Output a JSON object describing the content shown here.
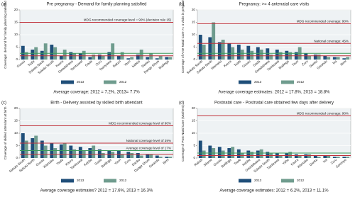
{
  "chart_data": [
    {
      "type": "bar",
      "panel": "(a)",
      "title": "Pre pregnancy - Demand for family planning satisfied",
      "y_label": "Coverage: demand for family planning satisfied",
      "categories": [
        "Gusau",
        "Tsafe",
        "Sokoto North",
        "Sokoto South",
        "Kaura",
        "Gwadabawa",
        "Tambuwal",
        "Gada",
        "Zuru",
        "Tsanyawa",
        "Bakori",
        "Yauri",
        "Kebbe",
        "Danko",
        "Dange Shuni",
        "Bodinga"
      ],
      "series": [
        {
          "name": "2013",
          "color": "#1f4e79",
          "values": [
            5.5,
            4.0,
            3.5,
            6.0,
            1.5,
            3.0,
            2.5,
            1.0,
            2.0,
            3.0,
            1.5,
            0.5,
            2.0,
            1.0,
            0.5,
            1.0
          ]
        },
        {
          "name": "2012",
          "color": "#6f9c8e",
          "values": [
            3.0,
            5.0,
            6.5,
            5.0,
            4.0,
            2.5,
            3.5,
            2.0,
            1.5,
            6.5,
            3.0,
            1.0,
            4.0,
            2.5,
            1.5,
            1.0
          ]
        }
      ],
      "ylim": [
        0,
        20
      ],
      "yticks": [
        0,
        5,
        10,
        15,
        20
      ],
      "ref_lines": [
        {
          "value": 15,
          "color": "#c0303a",
          "label": "MDG recommended coverage:level = 90% (decision rule 15)"
        },
        {
          "value": 2.5,
          "color": "#3d9a5a"
        },
        {
          "value": 1.5,
          "color": "#c0303a"
        }
      ],
      "footnote": "Average coverage: 2012 = 7.2%, 2013= 7.7%"
    },
    {
      "type": "bar",
      "panel": "(b)",
      "title": "Pregnancy: >= 4 antenatal care visits",
      "y_label": "Coverage of Ante Natal Care >= 4 visits in pregnancy",
      "categories": [
        "Sokoto South",
        "Sokoto North",
        "Wamako",
        "Kaura",
        "Tsafe",
        "Gusau",
        "Gada",
        "Gwadabawa",
        "Tambuwal",
        "Bodinga",
        "Yauri",
        "Zuru",
        "Danko",
        "Gwandu",
        "Isa",
        "Birni"
      ],
      "series": [
        {
          "name": "2013",
          "color": "#1f4e79",
          "values": [
            10,
            9,
            7,
            6.5,
            6,
            5.5,
            5,
            4.5,
            4,
            3.5,
            3,
            2.5,
            2,
            1.5,
            1,
            0.5
          ]
        },
        {
          "name": "2012",
          "color": "#6f9c8e",
          "values": [
            6,
            15,
            8,
            5,
            4,
            3.5,
            4,
            2,
            3,
            3,
            5,
            1.5,
            2,
            1,
            1,
            1
          ]
        }
      ],
      "ylim": [
        0,
        20
      ],
      "yticks": [
        0,
        5,
        10,
        15,
        20
      ],
      "ref_lines": [
        {
          "value": 14.5,
          "color": "#c0303a",
          "label": "MDG recommended coverage: 90%"
        },
        {
          "value": 6.5,
          "color": "#c0303a",
          "label": "National coverage: 45%"
        },
        {
          "value": 2.5,
          "color": "#3d9a5a"
        },
        {
          "value": 1.5,
          "color": "#c0303a"
        }
      ],
      "footnote": "Average coverage estimates: 2012 = 17.8%, 2013 = 18.8%"
    },
    {
      "type": "bar",
      "panel": "(c)",
      "title": "Birth - Delivery assisted by skilled birth attendant",
      "y_label": "Coverage of skilled attendant at birth",
      "categories": [
        "Sokoto South",
        "Sokoto North",
        "Gusau",
        "Wamako",
        "Tsafe",
        "Kaura",
        "Tambuwal",
        "Kebbe",
        "Gada",
        "Bodinga",
        "Yauri",
        "Zuru",
        "Danko",
        "Dange Shuni",
        "Gwandu",
        "Birni"
      ],
      "series": [
        {
          "name": "2013",
          "color": "#1f4e79",
          "values": [
            10,
            8,
            7,
            6,
            5.5,
            5,
            4.5,
            4,
            3.5,
            3,
            3,
            2.5,
            2,
            1.5,
            1,
            0.5
          ]
        },
        {
          "name": "2012",
          "color": "#6f9c8e",
          "values": [
            7,
            9,
            5,
            4,
            6,
            3.5,
            3,
            5,
            2,
            2.5,
            1.5,
            2,
            1,
            1.5,
            0.5,
            0.5
          ]
        }
      ],
      "ylim": [
        0,
        20
      ],
      "yticks": [
        0,
        5,
        10,
        15,
        20
      ],
      "ref_lines": [
        {
          "value": 13,
          "color": "#c0303a",
          "label": "MDG recommended coverage level of 90%"
        },
        {
          "value": 6,
          "color": "#c0303a",
          "label": "National coverage level of 39%"
        },
        {
          "value": 3,
          "color": "#3d9a5a",
          "label": "Average coverage level of 17%"
        },
        {
          "value": 1.5,
          "color": "#c0303a"
        }
      ],
      "footnote": "Average coverage estimates? 2012 = 17.6%, 2013 = 16.3%"
    },
    {
      "type": "bar",
      "panel": "(d)",
      "title": "Postnatal care - Postnatal care obtained few days after delivery",
      "y_label": "Coverage of Post Natal Care (Mothers)",
      "categories": [
        "Rabah",
        "Silame",
        "Gusau",
        "Bodinga",
        "Tsafe",
        "Kebbe",
        "Gwadabawa",
        "Sokoto South",
        "Tambuwal",
        "Yabo",
        "Kaura",
        "Wamako",
        "Danko",
        "Isa",
        "Zuru",
        "Goronyo"
      ],
      "series": [
        {
          "name": "2013",
          "color": "#1f4e79",
          "values": [
            7,
            5,
            4.5,
            4,
            3.5,
            3,
            3,
            2.5,
            2,
            2,
            1.5,
            1.5,
            1,
            1,
            0.5,
            0.5
          ]
        },
        {
          "name": "2012",
          "color": "#6f9c8e",
          "values": [
            3,
            4,
            3,
            4.5,
            2,
            2.5,
            3.5,
            2,
            1,
            2.5,
            1,
            1.5,
            0.5,
            1,
            0.5,
            0.5
          ]
        }
      ],
      "ylim": [
        0,
        20
      ],
      "yticks": [
        0,
        5,
        10,
        15,
        20
      ],
      "ref_lines": [
        {
          "value": 17,
          "color": "#c0303a",
          "label": "MDG recommended coverage: 90%"
        },
        {
          "value": 2,
          "color": "#3d9a5a"
        },
        {
          "value": 1,
          "color": "#c0303a"
        }
      ],
      "footnote": "Average coverage estimates: 2012 = 6.2%, 2013 = 11.1%"
    }
  ]
}
